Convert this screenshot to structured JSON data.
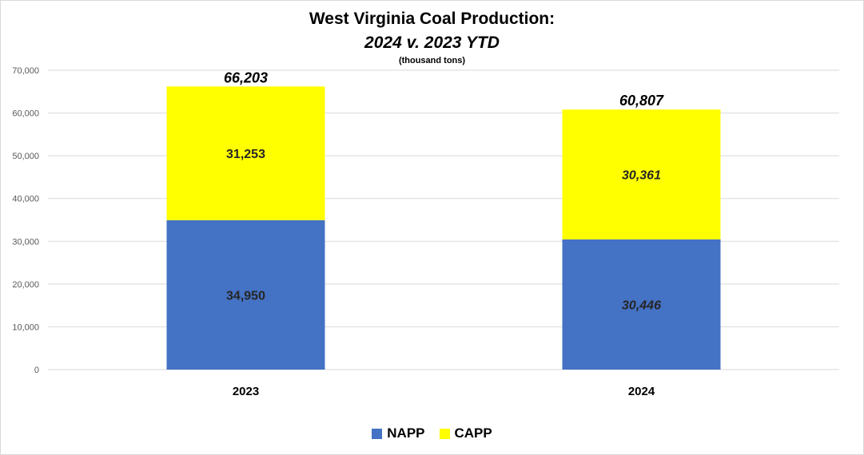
{
  "title": {
    "line1": "West Virginia Coal Production:",
    "line2": "2024 v. 2023 YTD",
    "unit": "(thousand tons)"
  },
  "chart_data": {
    "type": "bar",
    "stacked": true,
    "categories": [
      "2023",
      "2024"
    ],
    "series": [
      {
        "name": "NAPP",
        "values": [
          34950,
          30446
        ],
        "labels": [
          "34,950",
          "30,446"
        ],
        "color": "#4472C4"
      },
      {
        "name": "CAPP",
        "values": [
          31253,
          30361
        ],
        "labels": [
          "31,253",
          "30,361"
        ],
        "color": "#FFFF00"
      }
    ],
    "totals": [
      "66,203",
      "60,807"
    ],
    "ylim": [
      0,
      70000
    ],
    "yticks": [
      "0",
      "10,000",
      "20,000",
      "30,000",
      "40,000",
      "50,000",
      "60,000",
      "70,000"
    ],
    "grid": true,
    "legend_position": "bottom"
  }
}
